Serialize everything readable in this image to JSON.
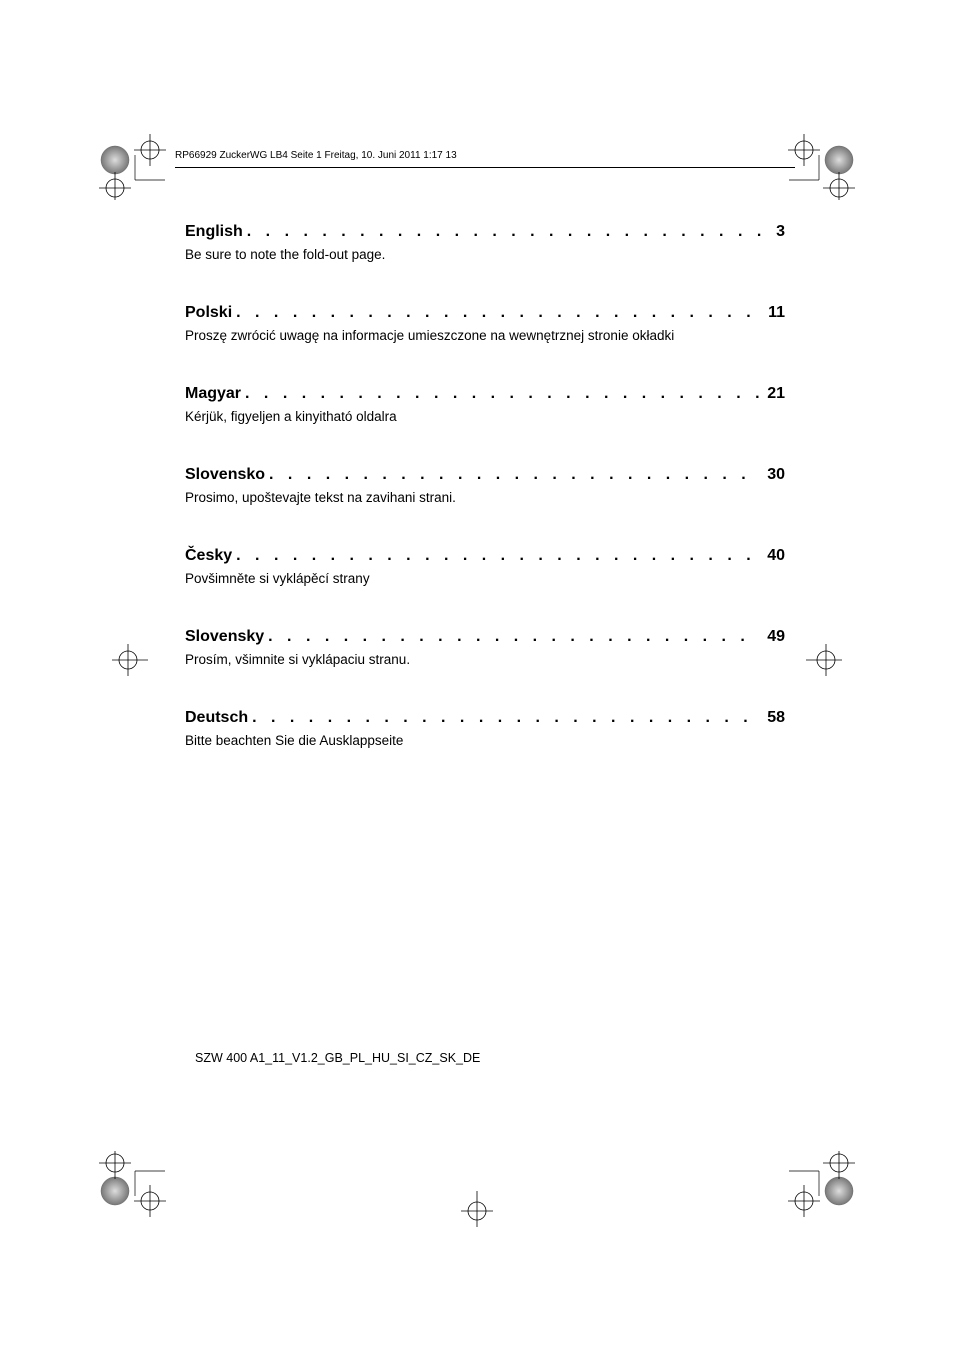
{
  "header": {
    "text": "RP66929 ZuckerWG LB4  Seite 1  Freitag, 10. Juni 2011  1:17 13"
  },
  "toc": {
    "dots_fill": ". . . . . . . . . . . . . . . . . . . . . . . . . . . . . . . . . . . . . . . . . . . . . . . . . . . . . . . . . . . . . . . . . . . . . . . . . . . . .",
    "entries": [
      {
        "title": "English",
        "page": "3",
        "sub": "Be sure to note the fold-out page."
      },
      {
        "title": "Polski ",
        "page": "11",
        "sub": "Proszę zwrócić uwagę na informacje umieszczone na wewnętrznej stronie okładki"
      },
      {
        "title": "Magyar",
        "page": "21",
        "sub": "Kérjük, figyeljen a kinyitható oldalra"
      },
      {
        "title": "Slovensko",
        "page": "30",
        "sub": "Prosimo, upoštevajte tekst na zavihani strani."
      },
      {
        "title": "Česky ",
        "page": "40",
        "sub": "Povšimněte si vyklápěcí strany"
      },
      {
        "title": "Slovensky",
        "page": "49",
        "sub": "Prosím, všimnite si vyklápaciu stranu."
      },
      {
        "title": "Deutsch",
        "page": "58",
        "sub": "Bitte beachten Sie die Ausklappseite"
      }
    ]
  },
  "footer": {
    "text": "SZW 400 A1_11_V1.2_GB_PL_HU_SI_CZ_SK_DE"
  },
  "marks": {
    "crop_color": "#000000",
    "reg_outer": "#8899aa",
    "reg_gradient_a": "#777777",
    "reg_gradient_b": "#dddddd"
  }
}
